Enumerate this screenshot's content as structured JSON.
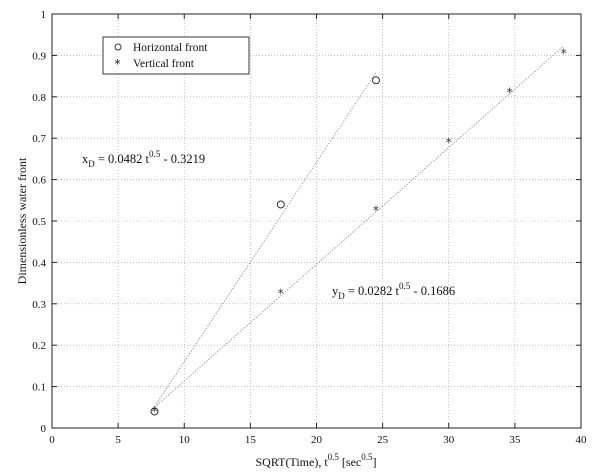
{
  "chart_data": {
    "type": "scatter",
    "xlabel": "SQRT(Time), t^0.5 [sec^0.5]",
    "ylabel": "Dimensionless water front",
    "xlim": [
      0,
      40
    ],
    "ylim": [
      0,
      1
    ],
    "xticks": [
      0,
      5,
      10,
      15,
      20,
      25,
      30,
      35,
      40
    ],
    "yticks": [
      0,
      0.1,
      0.2,
      0.3,
      0.4,
      0.5,
      0.6,
      0.7,
      0.8,
      0.9,
      1
    ],
    "ytick_labels": [
      "0",
      "0.1",
      "0.2",
      "0.3",
      "0.4",
      "0.5",
      "0.6",
      "0.7",
      "0.8",
      "0.9",
      "1"
    ],
    "grid": true,
    "legend_position": "top-left",
    "series": [
      {
        "name": "Horizontal front",
        "marker": "circle",
        "x": [
          7.75,
          17.3,
          24.5
        ],
        "y": [
          0.04,
          0.54,
          0.84
        ],
        "fit_line": {
          "x": [
            7.75,
            24.5
          ],
          "y": [
            0.0516,
            0.859
          ]
        }
      },
      {
        "name": "Vertical front",
        "marker": "star",
        "x": [
          7.75,
          17.3,
          24.5,
          30.0,
          34.6,
          38.7
        ],
        "y": [
          0.04,
          0.325,
          0.525,
          0.69,
          0.81,
          0.905
        ],
        "fit_line": {
          "x": [
            7.75,
            38.7
          ],
          "y": [
            0.05,
            0.9227
          ]
        }
      }
    ],
    "annotations": [
      {
        "text_main": "x",
        "text_sub": "D",
        "text_rest": " = 0.0482 t",
        "text_sup": "0.5",
        "text_end": " - 0.3219",
        "near_series": "Horizontal front"
      },
      {
        "text_main": "y",
        "text_sub": "D",
        "text_rest": " = 0.0282 t",
        "text_sup": "0.5",
        "text_end": " - 0.1686",
        "near_series": "Vertical front"
      }
    ],
    "xlabel_parts": {
      "main": "SQRT(Time), t",
      "sup1": "0.5",
      "mid": " [sec",
      "sup2": "0.5",
      "end": "]"
    }
  },
  "colors": {
    "axis": "#222222",
    "grid": "#9a9a9a",
    "fit_line": "#8a8a8a",
    "marker": "#333333"
  }
}
